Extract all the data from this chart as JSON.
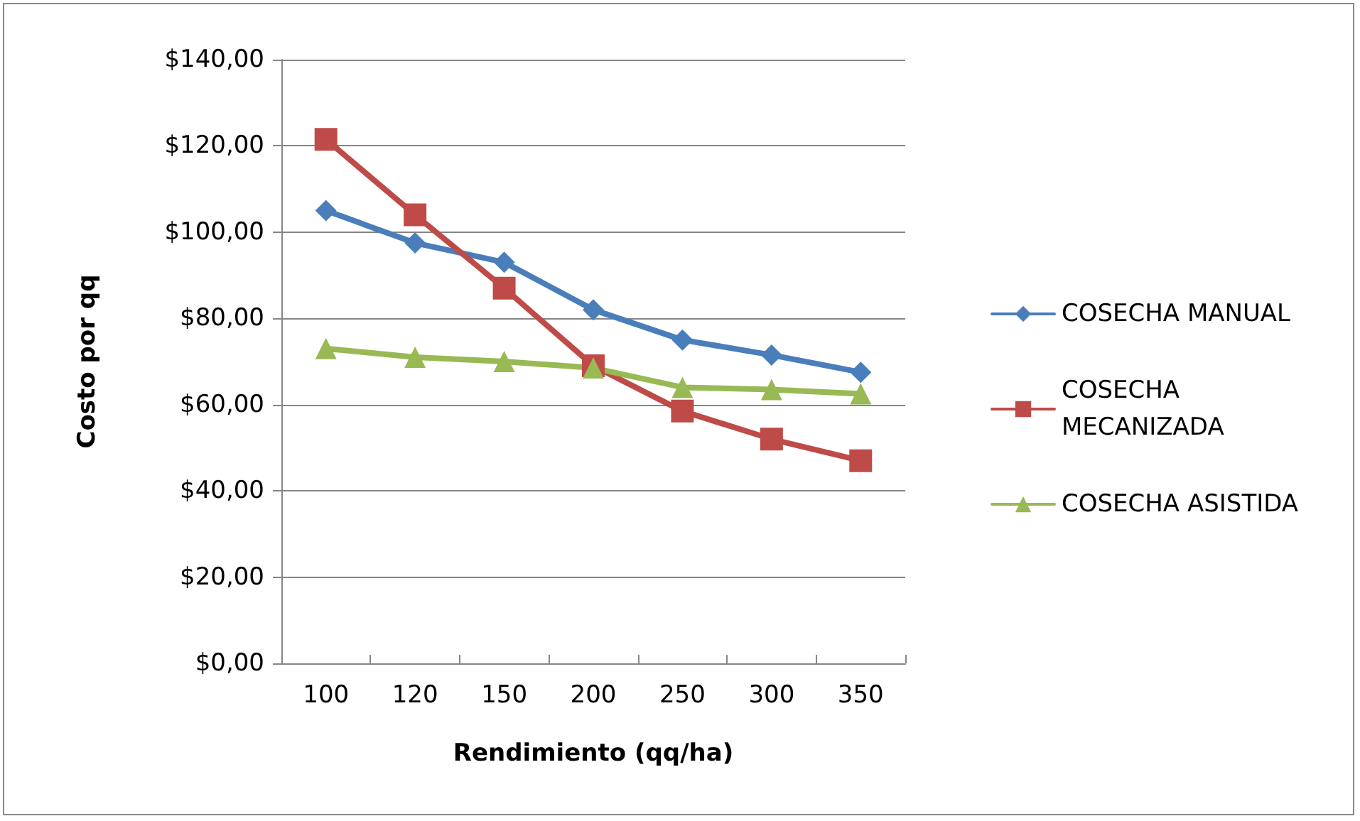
{
  "chart_data": {
    "type": "line",
    "xlabel": "Rendimiento (qq/ha)",
    "ylabel": "Costo por qq",
    "categories": [
      "100",
      "120",
      "150",
      "200",
      "250",
      "300",
      "350"
    ],
    "series": [
      {
        "name": "COSECHA MANUAL",
        "color": "#4a7ebb",
        "values": [
          105,
          97.5,
          93,
          82,
          75,
          71.5,
          67.5
        ],
        "marker": "diamond"
      },
      {
        "name": "COSECHA MECANIZADA",
        "color": "#be4b48",
        "values": [
          121.5,
          104,
          87,
          69,
          58.5,
          52,
          47
        ],
        "marker": "square"
      },
      {
        "name": "COSECHA ASISTIDA",
        "color": "#98b954",
        "values": [
          73,
          71,
          70,
          68.5,
          64,
          63.5,
          62.5
        ],
        "marker": "triangle"
      }
    ],
    "ylim": [
      0,
      140
    ],
    "yticks": [
      {
        "value": 0,
        "label": "$0,00"
      },
      {
        "value": 20,
        "label": "$20,00"
      },
      {
        "value": 40,
        "label": "$40,00"
      },
      {
        "value": 60,
        "label": "$60,00"
      },
      {
        "value": 80,
        "label": "$80,00"
      },
      {
        "value": 100,
        "label": "$100,00"
      },
      {
        "value": 120,
        "label": "$120,00"
      },
      {
        "value": 140,
        "label": "$140,00"
      }
    ],
    "grid": "y",
    "legend": "right",
    "line_style": "solid"
  }
}
